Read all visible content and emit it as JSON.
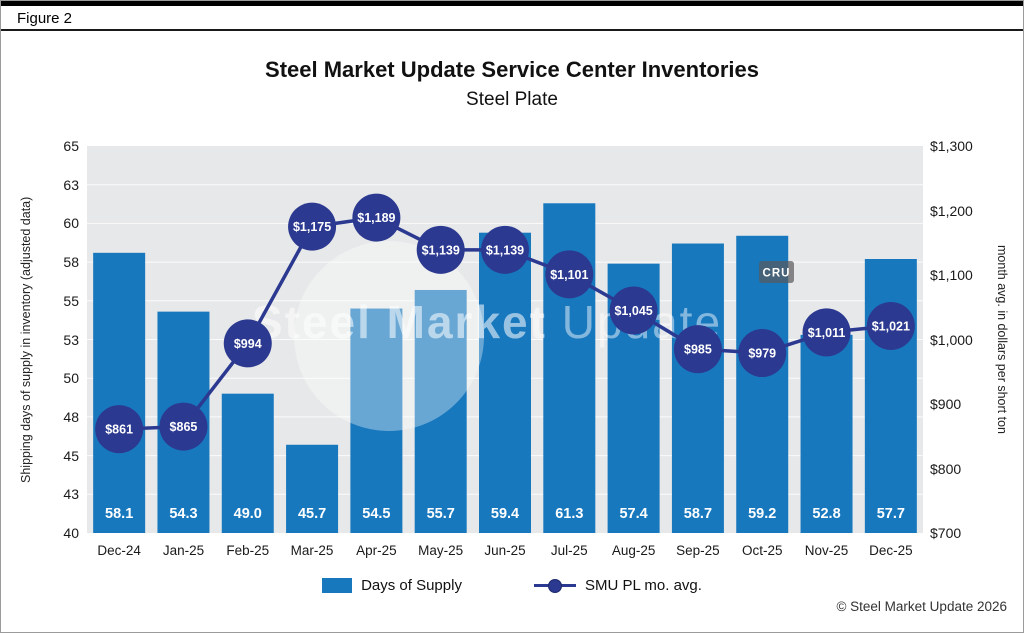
{
  "figure_label": "Figure 2",
  "title": "Steel Market Update Service Center Inventories",
  "subtitle": "Steel Plate",
  "footer": "© Steel Market Update 2026",
  "watermark": {
    "primary": "Steel Market",
    "secondary": " Update",
    "cru_badge": "CRU"
  },
  "colors": {
    "bar": "#1878BE",
    "line": "#2B3990",
    "plot_bg": "#E7E8E9",
    "gridline": "#FFFFFF",
    "bar_label": "#FFFFFF",
    "marker_label": "#FFFFFF"
  },
  "chart_data": {
    "type": "bar+line",
    "categories": [
      "Dec-24",
      "Jan-25",
      "Feb-25",
      "Mar-25",
      "Apr-25",
      "May-25",
      "Jun-25",
      "Jul-25",
      "Aug-25",
      "Sep-25",
      "Oct-25",
      "Nov-25",
      "Dec-25"
    ],
    "series": [
      {
        "name": "Days of Supply",
        "type": "bar",
        "axis": "left",
        "values": [
          58.1,
          54.3,
          49.0,
          45.7,
          54.5,
          55.7,
          59.4,
          61.3,
          57.4,
          58.7,
          59.2,
          52.8,
          57.7
        ],
        "labels": [
          "58.1",
          "54.3",
          "49.0",
          "45.7",
          "54.5",
          "55.7",
          "59.4",
          "61.3",
          "57.4",
          "58.7",
          "59.2",
          "52.8",
          "57.7"
        ]
      },
      {
        "name": "SMU PL mo. avg.",
        "type": "line",
        "axis": "right",
        "values": [
          861,
          865,
          994,
          1175,
          1189,
          1139,
          1139,
          1101,
          1045,
          985,
          979,
          1011,
          1021
        ],
        "labels": [
          "$861",
          "$865",
          "$994",
          "$1,175",
          "$1,189",
          "$1,139",
          "$1,139",
          "$1,101",
          "$1,045",
          "$985",
          "$979",
          "$1,011",
          "$1,021"
        ]
      }
    ],
    "left_axis": {
      "title": "Shipping days of supply in inventory (adjusted data)",
      "min": 40,
      "max": 65,
      "tick_labels": [
        "40",
        "43",
        "45",
        "48",
        "50",
        "53",
        "55",
        "58",
        "60",
        "63",
        "65"
      ]
    },
    "right_axis": {
      "title": "month avg. in dollars per short ton",
      "min": 700,
      "max": 1300,
      "tick_labels": [
        "$700",
        "$800",
        "$900",
        "$1,000",
        "$1,100",
        "$1,200",
        "$1,300"
      ]
    },
    "grid": true,
    "legend_position": "bottom"
  }
}
